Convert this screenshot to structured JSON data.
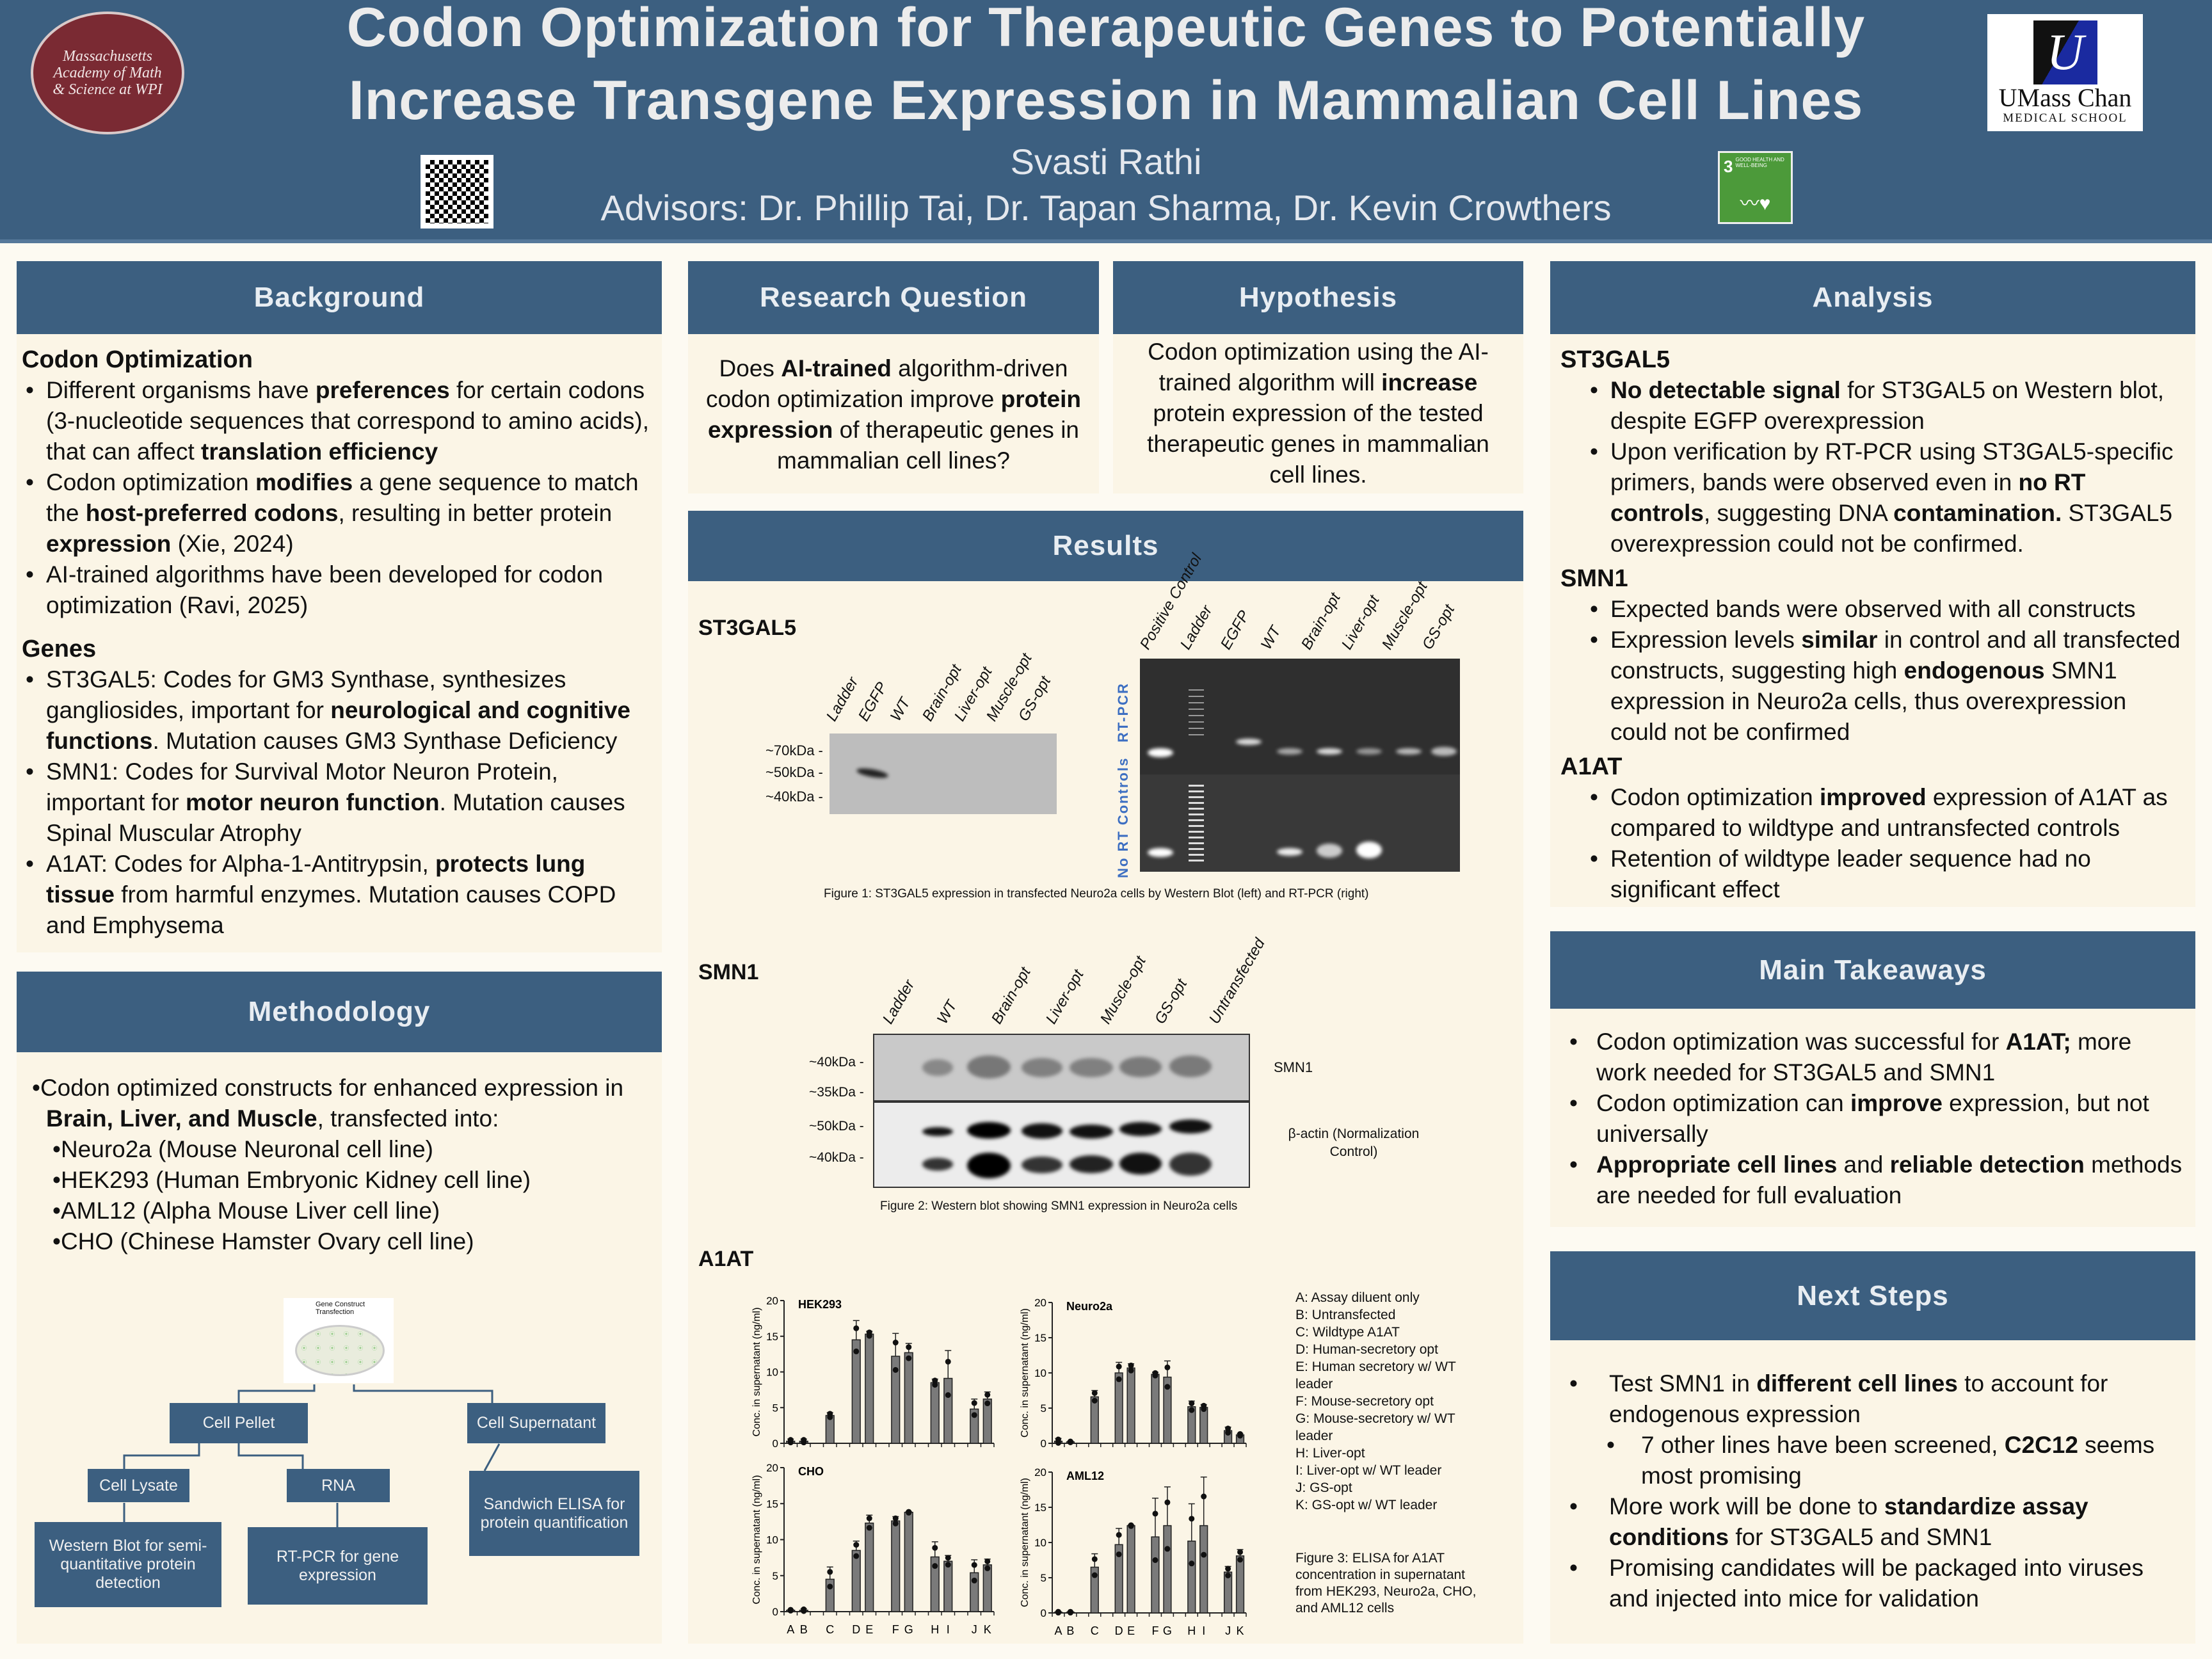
{
  "header": {
    "title_line1": "Codon Optimization for Therapeutic Genes to Potentially",
    "title_line2": "Increase Transgene Expression in Mammalian Cell Lines",
    "author": "Svasti Rathi",
    "advisors": "Advisors: Dr. Phillip Tai, Dr. Tapan Sharma, Dr. Kevin Crowthers",
    "left_logo": "Massachusetts Academy of Math & Science at WPI",
    "right_logo_name": "UMass Chan",
    "right_logo_sub": "MEDICAL SCHOOL",
    "sdg_number": "3",
    "sdg_text": "GOOD HEALTH AND WELL-BEING"
  },
  "background": {
    "title": "Background",
    "sections": [
      {
        "heading": "Codon Optimization",
        "bullets": [
          [
            {
              "t": "Different organisms have "
            },
            {
              "t": "preferences",
              "b": true
            },
            {
              "t": " for certain codons (3-nucleotide sequences that correspond to amino acids), that can affect "
            },
            {
              "t": "translation efficiency",
              "b": true
            }
          ],
          [
            {
              "t": "Codon optimization "
            },
            {
              "t": "modifies",
              "b": true
            },
            {
              "t": " a gene sequence to match the "
            },
            {
              "t": "host-preferred codons",
              "b": true
            },
            {
              "t": ", resulting in better protein "
            },
            {
              "t": "expression",
              "b": true
            },
            {
              "t": " (Xie, 2024)"
            }
          ],
          [
            {
              "t": "AI-trained algorithms have been developed for codon optimization (Ravi, 2025)"
            }
          ]
        ]
      },
      {
        "heading": "Genes",
        "bullets": [
          [
            {
              "t": "ST3GAL5: Codes for GM3 Synthase, synthesizes gangliosides, important for "
            },
            {
              "t": "neurological and cognitive functions",
              "b": true
            },
            {
              "t": ". Mutation causes GM3 Synthase Deficiency"
            }
          ],
          [
            {
              "t": "SMN1: Codes for Survival Motor Neuron Protein, important for "
            },
            {
              "t": "motor neuron function",
              "b": true
            },
            {
              "t": ". Mutation causes Spinal Muscular Atrophy"
            }
          ],
          [
            {
              "t": "A1AT: Codes for Alpha-1-Antitrypsin, "
            },
            {
              "t": "protects lung tissue",
              "b": true
            },
            {
              "t": " from harmful enzymes. Mutation causes COPD and Emphysema"
            }
          ]
        ]
      }
    ]
  },
  "methodology": {
    "title": "Methodology",
    "intro": [
      {
        "t": "•Codon optimized constructs for enhanced expression in "
      },
      {
        "t": "Brain, Liver, and Muscle",
        "b": true
      },
      {
        "t": ", transfected into:"
      }
    ],
    "cell_lines": [
      "•Neuro2a (Mouse Neuronal cell line)",
      "•HEK293 (Human Embryonic Kidney cell line)",
      "•AML12 (Alpha Mouse Liver cell line)",
      "•CHO (Chinese Hamster Ovary cell line)"
    ],
    "diagram": {
      "dish_label": "Gene Construct Transfection",
      "cell_pellet": "Cell Pellet",
      "cell_supernatant": "Cell Supernatant",
      "cell_lysate": "Cell Lysate",
      "rna": "RNA",
      "western": "Western Blot for semi-quantitative protein detection",
      "rtpcr": "RT-PCR for gene expression",
      "elisa": "Sandwich ELISA for protein quantification"
    }
  },
  "research_question": {
    "title": "Research Question",
    "text": [
      {
        "t": "Does "
      },
      {
        "t": "AI-trained",
        "b": true
      },
      {
        "t": " algorithm-driven codon optimization improve "
      },
      {
        "t": "protein expression",
        "b": true
      },
      {
        "t": " of therapeutic genes in mammalian cell lines?"
      }
    ]
  },
  "hypothesis": {
    "title": "Hypothesis",
    "text": [
      {
        "t": "Codon optimization using the AI-trained algorithm will "
      },
      {
        "t": "increase",
        "b": true
      },
      {
        "t": " protein expression of the tested therapeutic genes in mammalian cell lines."
      }
    ]
  },
  "results": {
    "title": "Results",
    "st3gal5": {
      "label": "ST3GAL5",
      "wb_lanes": [
        "Ladder",
        "EGFP",
        "WT",
        "Brain-opt",
        "Liver-opt",
        "Muscle-opt",
        "GS-opt"
      ],
      "wb_markers": [
        "~70kDa -",
        "~50kDa -",
        "~40kDa -"
      ],
      "gel_lanes": [
        "Positive Control",
        "Ladder",
        "EGFP",
        "WT",
        "Brain-opt",
        "Liver-opt",
        "Muscle-opt",
        "GS-opt"
      ],
      "gel_row_labels": [
        "RT-PCR",
        "No RT Controls"
      ],
      "caption": "Figure 1: ST3GAL5 expression in transfected Neuro2a cells by Western Blot (left) and RT-PCR (right)"
    },
    "smn1": {
      "label": "SMN1",
      "lanes": [
        "Ladder",
        "WT",
        "Brain-opt",
        "Liver-opt",
        "Muscle-opt",
        "GS-opt",
        "Untransfected"
      ],
      "markers_top": [
        "~40kDa -",
        "~35kDa -"
      ],
      "markers_bottom": [
        "~50kDa -",
        "~40kDa -"
      ],
      "band_top": "SMN1",
      "band_bottom": "β-actin (Normalization Control)",
      "caption": "Figure 2: Western blot showing SMN1 expression in Neuro2a cells"
    },
    "a1at": {
      "label": "A1AT",
      "legend": [
        "A: Assay diluent only",
        "B: Untransfected",
        "C: Wildtype A1AT",
        "D: Human-secretory opt",
        "E: Human secretory w/ WT leader",
        "F: Mouse-secretory opt",
        "G: Mouse-secretory w/ WT leader",
        "H: Liver-opt",
        "I: Liver-opt w/ WT leader",
        "J: GS-opt",
        "K: GS-opt w/ WT leader"
      ],
      "caption": "Figure 3: ELISA for A1AT concentration in supernatant from HEK293, Neuro2a, CHO, and AML12 cells"
    }
  },
  "chart_data": {
    "type": "bar",
    "ylabel": "Conc. in supernatant (ng/ml)",
    "ylim": [
      0,
      20
    ],
    "yticks": [
      0,
      5,
      10,
      15,
      20
    ],
    "categories": [
      "A",
      "B",
      "C",
      "D",
      "E",
      "F",
      "G",
      "H",
      "I",
      "J",
      "K"
    ],
    "panels": [
      {
        "title": "HEK293",
        "values": [
          0.3,
          0.3,
          3.9,
          14.5,
          15.3,
          12.2,
          12.7,
          8.5,
          9.1,
          4.8,
          6.2
        ],
        "error": [
          0.3,
          0.3,
          0.4,
          2.7,
          0.4,
          3.2,
          1.3,
          0.5,
          3.9,
          1.4,
          1.0
        ]
      },
      {
        "title": "Neuro2a",
        "values": [
          0.3,
          0.2,
          6.6,
          10.0,
          10.7,
          9.8,
          9.4,
          5.2,
          5.1,
          1.8,
          1.2
        ],
        "error": [
          0.4,
          0.1,
          0.9,
          1.5,
          0.6,
          0.3,
          2.3,
          0.8,
          0.4,
          0.5,
          0.2
        ]
      },
      {
        "title": "CHO",
        "values": [
          0.2,
          0.2,
          4.5,
          8.5,
          12.3,
          12.6,
          13.8,
          7.6,
          7.0,
          5.4,
          6.5
        ],
        "error": [
          0.1,
          0.2,
          1.7,
          1.3,
          1.1,
          0.6,
          0.1,
          2.1,
          0.8,
          1.8,
          0.8
        ]
      },
      {
        "title": "AML12",
        "values": [
          0.1,
          0.1,
          6.5,
          9.7,
          12.4,
          10.8,
          12.4,
          10.2,
          12.4,
          5.8,
          8.1
        ],
        "error": [
          0.1,
          0.1,
          1.9,
          2.3,
          0.1,
          5.5,
          5.5,
          5.3,
          6.9,
          0.8,
          0.9
        ]
      }
    ]
  },
  "analysis": {
    "title": "Analysis",
    "sections": [
      {
        "heading": "ST3GAL5",
        "bullets": [
          [
            {
              "t": "No detectable signal",
              "b": true
            },
            {
              "t": " for ST3GAL5 on Western blot, despite EGFP overexpression"
            }
          ],
          [
            {
              "t": "Upon verification by RT-PCR using ST3GAL5-specific primers, bands were observed even in "
            },
            {
              "t": "no RT controls",
              "b": true
            },
            {
              "t": ", suggesting DNA "
            },
            {
              "t": "contamination.",
              "b": true
            },
            {
              "t": " ST3GAL5 overexpression could not be confirmed."
            }
          ]
        ]
      },
      {
        "heading": "SMN1",
        "bullets": [
          [
            {
              "t": "Expected bands were observed with all constructs"
            }
          ],
          [
            {
              "t": "Expression levels "
            },
            {
              "t": "similar",
              "b": true
            },
            {
              "t": " in control and all transfected constructs, suggesting high "
            },
            {
              "t": "endogenous",
              "b": true
            },
            {
              "t": " SMN1 expression in Neuro2a cells, thus overexpression could not be confirmed"
            }
          ]
        ]
      },
      {
        "heading": "A1AT",
        "bullets": [
          [
            {
              "t": "Codon optimization "
            },
            {
              "t": "improved",
              "b": true
            },
            {
              "t": " expression of A1AT as compared to wildtype and untransfected controls"
            }
          ],
          [
            {
              "t": "Retention of wildtype leader sequence had no significant effect"
            }
          ]
        ]
      }
    ]
  },
  "takeaways": {
    "title": "Main Takeaways",
    "bullets": [
      [
        {
          "t": "Codon optimization was successful for "
        },
        {
          "t": "A1AT;",
          "b": true
        },
        {
          "t": " more work needed for ST3GAL5 and SMN1"
        }
      ],
      [
        {
          "t": "Codon optimization can "
        },
        {
          "t": "improve",
          "b": true
        },
        {
          "t": " expression, but not universally"
        }
      ],
      [
        {
          "t": "Appropriate cell lines",
          "b": true
        },
        {
          "t": " and "
        },
        {
          "t": "reliable detection",
          "b": true
        },
        {
          "t": " methods are needed for full evaluation"
        }
      ]
    ]
  },
  "next_steps": {
    "title": "Next Steps",
    "bullets": [
      [
        {
          "t": "Test SMN1 in "
        },
        {
          "t": "different cell lines",
          "b": true
        },
        {
          "t": " to account for endogenous expression"
        }
      ],
      [
        {
          "t": "7 other lines have been screened, "
        },
        {
          "t": "C2C12",
          "b": true
        },
        {
          "t": " seems most promising"
        }
      ],
      [
        {
          "t": "More work will be done to "
        },
        {
          "t": "standardize assay conditions",
          "b": true
        },
        {
          "t": " for ST3GAL5 and SMN1"
        }
      ],
      [
        {
          "t": "Promising candidates will be packaged into viruses and injected into mice for validation"
        }
      ]
    ]
  },
  "colors": {
    "header": "#3c5f80",
    "panel_body": "#fbf5e6",
    "page": "#fdfaf2"
  }
}
